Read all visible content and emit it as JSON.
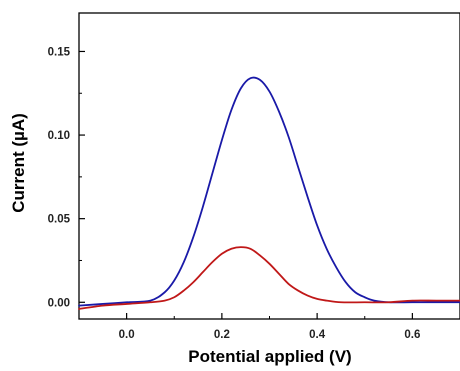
{
  "chart_data": {
    "type": "line",
    "title": "",
    "xlabel": "Potential applied (V)",
    "ylabel": "Current (µA)",
    "xlim": [
      -0.1,
      0.7
    ],
    "ylim": [
      -0.01,
      0.173
    ],
    "x_ticks": [
      0.0,
      0.2,
      0.4,
      0.6
    ],
    "x_tick_labels": [
      "0.0",
      "0.2",
      "0.4",
      "0.6"
    ],
    "y_ticks": [
      0.0,
      0.05,
      0.1,
      0.15
    ],
    "y_tick_labels": [
      "0.00",
      "0.05",
      "0.10",
      "0.15"
    ],
    "grid": false,
    "legend": "none",
    "series": [
      {
        "color": "#1a1aa8",
        "x": [
          -0.1,
          -0.05,
          0.0,
          0.05,
          0.08,
          0.1,
          0.12,
          0.14,
          0.16,
          0.18,
          0.2,
          0.22,
          0.24,
          0.26,
          0.28,
          0.3,
          0.32,
          0.34,
          0.36,
          0.38,
          0.4,
          0.42,
          0.44,
          0.46,
          0.48,
          0.5,
          0.52,
          0.55,
          0.6,
          0.65,
          0.7
        ],
        "y": [
          -0.002,
          -0.001,
          0.0,
          0.001,
          0.006,
          0.013,
          0.024,
          0.039,
          0.057,
          0.077,
          0.097,
          0.115,
          0.128,
          0.134,
          0.133,
          0.126,
          0.114,
          0.099,
          0.081,
          0.063,
          0.046,
          0.032,
          0.021,
          0.012,
          0.006,
          0.003,
          0.001,
          0.0,
          0.0,
          0.0,
          0.0
        ]
      },
      {
        "color": "#c01818",
        "x": [
          -0.1,
          -0.05,
          0.0,
          0.05,
          0.08,
          0.1,
          0.12,
          0.14,
          0.16,
          0.18,
          0.2,
          0.22,
          0.24,
          0.26,
          0.28,
          0.3,
          0.32,
          0.34,
          0.36,
          0.38,
          0.4,
          0.42,
          0.45,
          0.5,
          0.55,
          0.6,
          0.65,
          0.7
        ],
        "y": [
          -0.004,
          -0.002,
          -0.001,
          0.0,
          0.001,
          0.003,
          0.007,
          0.012,
          0.018,
          0.024,
          0.029,
          0.032,
          0.033,
          0.032,
          0.028,
          0.023,
          0.017,
          0.011,
          0.007,
          0.004,
          0.002,
          0.001,
          0.0,
          0.0,
          0.0,
          0.001,
          0.001,
          0.001
        ]
      }
    ]
  }
}
